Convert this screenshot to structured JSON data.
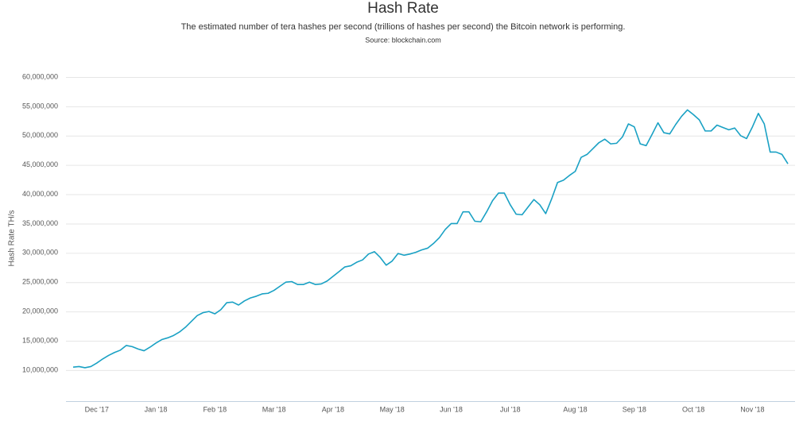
{
  "chart_data": {
    "type": "line",
    "title": "Hash Rate",
    "subtitle": "The estimated number of tera hashes per second (trillions of hashes per second) the Bitcoin network is performing.",
    "source": "Source: blockchain.com",
    "y_label": "Hash Rate TH/s",
    "color": "#1aa1c4",
    "grid": true,
    "ylim": [
      4700000,
      60000000
    ],
    "yticks": [
      {
        "value": 10000000,
        "label": "10,000,000"
      },
      {
        "value": 15000000,
        "label": "15,000,000"
      },
      {
        "value": 20000000,
        "label": "20,000,000"
      },
      {
        "value": 25000000,
        "label": "25,000,000"
      },
      {
        "value": 30000000,
        "label": "30,000,000"
      },
      {
        "value": 35000000,
        "label": "35,000,000"
      },
      {
        "value": 40000000,
        "label": "40,000,000"
      },
      {
        "value": 45000000,
        "label": "45,000,000"
      },
      {
        "value": 50000000,
        "label": "50,000,000"
      },
      {
        "value": 55000000,
        "label": "55,000,000"
      },
      {
        "value": 60000000,
        "label": "60,000,000"
      }
    ],
    "categories": [
      null,
      null,
      null,
      null,
      "Dec '17",
      null,
      null,
      null,
      null,
      null,
      null,
      null,
      null,
      null,
      "Jan '18",
      null,
      null,
      null,
      null,
      null,
      null,
      null,
      null,
      null,
      "Feb '18",
      null,
      null,
      null,
      null,
      null,
      null,
      null,
      null,
      null,
      "Mar '18",
      null,
      null,
      null,
      null,
      null,
      null,
      null,
      null,
      null,
      "Apr '18",
      null,
      null,
      null,
      null,
      null,
      null,
      null,
      null,
      null,
      "May '18",
      null,
      null,
      null,
      null,
      null,
      null,
      null,
      null,
      null,
      "Jun '18",
      null,
      null,
      null,
      null,
      null,
      null,
      null,
      null,
      null,
      "Jul '18",
      null,
      null,
      null,
      null,
      null,
      null,
      null,
      null,
      null,
      null,
      "Aug '18",
      null,
      null,
      null,
      null,
      null,
      null,
      null,
      null,
      null,
      "Sep '18",
      null,
      null,
      null,
      null,
      null,
      null,
      null,
      null,
      null,
      "Oct '18",
      null,
      null,
      null,
      null,
      null,
      null,
      null,
      null,
      null,
      "Nov '18",
      null,
      null,
      null,
      null,
      null,
      null
    ],
    "values": [
      10500000,
      10600000,
      10400000,
      10600000,
      11200000,
      11900000,
      12500000,
      13000000,
      13400000,
      14200000,
      14000000,
      13600000,
      13300000,
      13900000,
      14600000,
      15200000,
      15500000,
      15900000,
      16500000,
      17300000,
      18300000,
      19300000,
      19800000,
      20000000,
      19600000,
      20300000,
      21500000,
      21600000,
      21100000,
      21800000,
      22300000,
      22600000,
      23000000,
      23100000,
      23600000,
      24300000,
      25000000,
      25100000,
      24600000,
      24600000,
      25000000,
      24600000,
      24700000,
      25200000,
      26000000,
      26800000,
      27600000,
      27800000,
      28400000,
      28800000,
      29800000,
      30200000,
      29200000,
      27900000,
      28600000,
      29900000,
      29600000,
      29800000,
      30100000,
      30500000,
      30800000,
      31600000,
      32600000,
      34000000,
      35000000,
      35000000,
      37000000,
      37000000,
      35400000,
      35300000,
      37000000,
      38900000,
      40200000,
      40200000,
      38200000,
      36600000,
      36500000,
      37800000,
      39100000,
      38200000,
      36700000,
      39200000,
      42000000,
      42400000,
      43200000,
      43900000,
      46300000,
      46800000,
      47800000,
      48800000,
      49400000,
      48600000,
      48700000,
      49800000,
      52000000,
      51500000,
      48600000,
      48300000,
      50200000,
      52200000,
      50500000,
      50300000,
      51900000,
      53300000,
      54400000,
      53600000,
      52700000,
      50800000,
      50800000,
      51800000,
      51400000,
      51000000,
      51300000,
      50000000,
      49500000,
      51500000,
      53800000,
      52000000,
      47200000,
      47200000,
      46800000,
      45200000
    ]
  }
}
